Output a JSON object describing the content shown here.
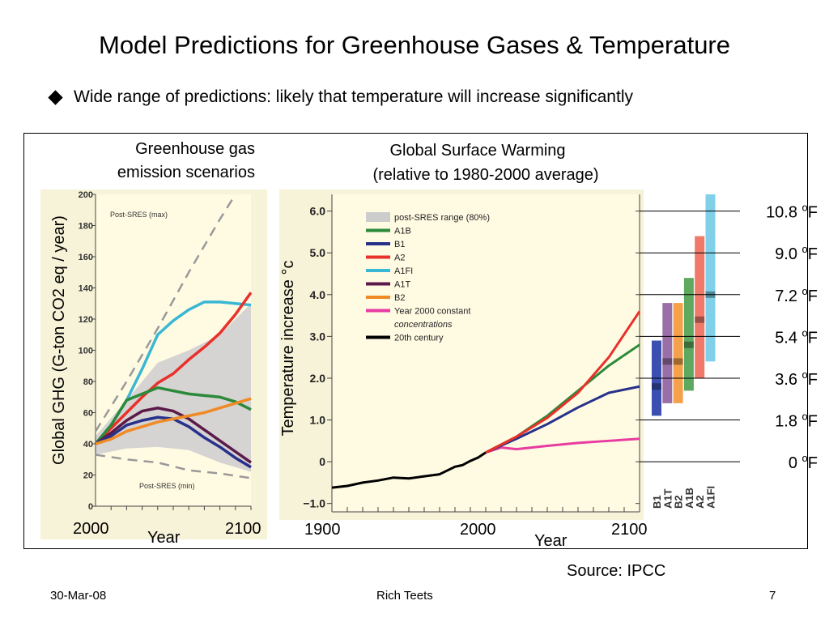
{
  "slide": {
    "title": "Model Predictions for Greenhouse Gases & Temperature",
    "bullet": "Wide range of predictions: likely that temperature will increase significantly",
    "source": "Source: IPCC",
    "footer": {
      "date": "30-Mar-08",
      "author": "Rich Teets",
      "page": "7"
    }
  },
  "chart_data": [
    {
      "type": "line",
      "title": "Greenhouse gas emission scenarios",
      "title_lines": [
        "Greenhouse gas",
        "emission scenarios"
      ],
      "xlabel": "Year",
      "ylabel": "Global GHG   (G-ton CO2 eq / year)",
      "x_tick_labels": [
        "2000",
        "2100"
      ],
      "xlim": [
        2000,
        2100
      ],
      "ylim": [
        0,
        200
      ],
      "y_ticks": [
        0,
        20,
        40,
        60,
        80,
        100,
        120,
        140,
        160,
        180,
        200
      ],
      "annotations": [
        "Post-SRES (max)",
        "Post-SRES (min)"
      ],
      "band_upper": {
        "x": [
          2000,
          2020,
          2040,
          2060,
          2080,
          2100
        ],
        "y": [
          45,
          68,
          92,
          100,
          110,
          130
        ]
      },
      "band_lower": {
        "x": [
          2000,
          2020,
          2040,
          2060,
          2080,
          2100
        ],
        "y": [
          33,
          37,
          38,
          36,
          28,
          22
        ]
      },
      "series": [
        {
          "name": "A1FI",
          "color": "#3ab7d4",
          "x": [
            2000,
            2010,
            2020,
            2030,
            2040,
            2050,
            2060,
            2070,
            2080,
            2090,
            2100
          ],
          "y": [
            40,
            52,
            68,
            88,
            110,
            119,
            126,
            131,
            131,
            130,
            129
          ]
        },
        {
          "name": "A2",
          "color": "#e8312a",
          "x": [
            2000,
            2010,
            2020,
            2030,
            2040,
            2050,
            2060,
            2070,
            2080,
            2090,
            2100
          ],
          "y": [
            40,
            50,
            60,
            70,
            79,
            85,
            94,
            102,
            111,
            123,
            137
          ]
        },
        {
          "name": "A1B",
          "color": "#2b8a3a",
          "x": [
            2000,
            2010,
            2020,
            2030,
            2040,
            2050,
            2060,
            2070,
            2080,
            2090,
            2100
          ],
          "y": [
            40,
            52,
            68,
            72,
            76,
            74,
            72,
            71,
            70,
            67,
            62
          ]
        },
        {
          "name": "A1T",
          "color": "#5b1a4a",
          "x": [
            2000,
            2010,
            2020,
            2030,
            2040,
            2050,
            2060,
            2070,
            2080,
            2090,
            2100
          ],
          "y": [
            40,
            47,
            55,
            61,
            63,
            61,
            56,
            49,
            42,
            35,
            28
          ]
        },
        {
          "name": "B1",
          "color": "#27318a",
          "x": [
            2000,
            2010,
            2020,
            2030,
            2040,
            2050,
            2060,
            2070,
            2080,
            2090,
            2100
          ],
          "y": [
            40,
            45,
            52,
            55,
            57,
            56,
            51,
            44,
            38,
            31,
            25
          ]
        },
        {
          "name": "B2",
          "color": "#f08a24",
          "x": [
            2000,
            2010,
            2020,
            2030,
            2040,
            2050,
            2060,
            2070,
            2080,
            2090,
            2100
          ],
          "y": [
            40,
            43,
            48,
            51,
            54,
            56,
            58,
            60,
            63,
            66,
            69
          ]
        },
        {
          "name": "Post-SRES (max)",
          "color": "#999999",
          "dashed": true,
          "x": [
            2000,
            2020,
            2040,
            2060,
            2080,
            2090
          ],
          "y": [
            48,
            80,
            114,
            150,
            184,
            200
          ]
        },
        {
          "name": "Post-SRES (min)",
          "color": "#999999",
          "dashed": true,
          "x": [
            2000,
            2020,
            2040,
            2060,
            2080,
            2100
          ],
          "y": [
            33,
            30,
            28,
            23,
            21,
            18
          ]
        }
      ]
    },
    {
      "type": "line",
      "title": "Global Surface Warming",
      "subtitle": "(relative to 1980-2000 average)",
      "xlabel": "Year",
      "ylabel": "Temperature increase °c",
      "x_tick_labels": [
        "1900",
        "2000",
        "2100"
      ],
      "xlim": [
        1900,
        2100
      ],
      "ylim": [
        -1.2,
        6.4
      ],
      "y_ticks": [
        -1.0,
        0,
        1.0,
        2.0,
        3.0,
        4.0,
        5.0,
        6.0
      ],
      "y_tick_labels": [
        "−1.0",
        "0",
        "1.0",
        "2.0",
        "3.0",
        "4.0",
        "5.0",
        "6.0"
      ],
      "legend": [
        {
          "label": "post-SRES range (80%)",
          "color": "#cccccc",
          "swatch": "box",
          "italic": false
        },
        {
          "label": "A1B",
          "color": "#2b8a3a",
          "swatch": "line",
          "italic": false
        },
        {
          "label": "B1",
          "color": "#27318a",
          "swatch": "line",
          "italic": false
        },
        {
          "label": "A2",
          "color": "#e8312a",
          "swatch": "line",
          "italic": false
        },
        {
          "label": "A1FI",
          "color": "#3ab7d4",
          "swatch": "line",
          "italic": false
        },
        {
          "label": "A1T",
          "color": "#5b1a4a",
          "swatch": "line",
          "italic": false
        },
        {
          "label": "B2",
          "color": "#f08a24",
          "swatch": "line",
          "italic": false
        },
        {
          "label": "Year 2000 constant",
          "color": "#e83ca0",
          "swatch": "line",
          "italic": false
        },
        {
          "label": "concentrations",
          "color": "#e83ca0",
          "swatch": "none",
          "italic": true
        },
        {
          "label": "20th century",
          "color": "#000000",
          "swatch": "line",
          "italic": false
        }
      ],
      "series": [
        {
          "name": "20th century",
          "color": "#000000",
          "x": [
            1900,
            1910,
            1920,
            1930,
            1940,
            1950,
            1960,
            1970,
            1980,
            1985,
            1990,
            1995,
            2000
          ],
          "y": [
            -0.62,
            -0.58,
            -0.5,
            -0.45,
            -0.38,
            -0.4,
            -0.35,
            -0.3,
            -0.12,
            -0.08,
            0.02,
            0.1,
            0.22
          ]
        },
        {
          "name": "Year 2000 constant concentrations",
          "color": "#e83ca0",
          "x": [
            2000,
            2010,
            2020,
            2040,
            2060,
            2080,
            2100
          ],
          "y": [
            0.22,
            0.34,
            0.3,
            0.38,
            0.45,
            0.5,
            0.55
          ]
        },
        {
          "name": "B1",
          "color": "#27318a",
          "x": [
            2000,
            2020,
            2040,
            2060,
            2080,
            2100
          ],
          "y": [
            0.22,
            0.55,
            0.9,
            1.3,
            1.65,
            1.8
          ]
        },
        {
          "name": "A1B",
          "color": "#2b8a3a",
          "x": [
            2000,
            2020,
            2040,
            2060,
            2080,
            2100
          ],
          "y": [
            0.22,
            0.6,
            1.1,
            1.7,
            2.3,
            2.8
          ]
        },
        {
          "name": "A2",
          "color": "#e8312a",
          "x": [
            2000,
            2020,
            2040,
            2060,
            2080,
            2100
          ],
          "y": [
            0.22,
            0.6,
            1.05,
            1.65,
            2.5,
            3.6
          ]
        }
      ],
      "range_bars": [
        {
          "name": "B1",
          "low": 1.1,
          "high": 2.9,
          "best": 1.8,
          "color": "#3a4fb0"
        },
        {
          "name": "A1T",
          "low": 1.4,
          "high": 3.8,
          "best": 2.4,
          "color": "#9a6fa8"
        },
        {
          "name": "B2",
          "low": 1.4,
          "high": 3.8,
          "best": 2.4,
          "color": "#f5a04a"
        },
        {
          "name": "A1B",
          "low": 1.7,
          "high": 4.4,
          "best": 2.8,
          "color": "#5fa85f"
        },
        {
          "name": "A2",
          "low": 2.0,
          "high": 5.4,
          "best": 3.4,
          "color": "#f07a6a"
        },
        {
          "name": "A1FI",
          "low": 2.4,
          "high": 6.4,
          "best": 4.0,
          "color": "#7fd0e8"
        }
      ],
      "fahrenheit_labels": [
        {
          "celsius": 6.0,
          "label": "10.8 ",
          "sup": "o",
          "unit": "F"
        },
        {
          "celsius": 5.0,
          "label": "9.0 ",
          "sup": "o",
          "unit": "F"
        },
        {
          "celsius": 4.0,
          "label": "7.2 ",
          "sup": "o",
          "unit": "F"
        },
        {
          "celsius": 3.0,
          "label": "5.4 ",
          "sup": "o",
          "unit": "F"
        },
        {
          "celsius": 2.0,
          "label": "3.6 ",
          "sup": "o",
          "unit": "F"
        },
        {
          "celsius": 1.0,
          "label": "1.8 ",
          "sup": "o",
          "unit": "F"
        },
        {
          "celsius": 0.0,
          "label": "0 ",
          "sup": "o",
          "unit": "F"
        }
      ]
    }
  ]
}
